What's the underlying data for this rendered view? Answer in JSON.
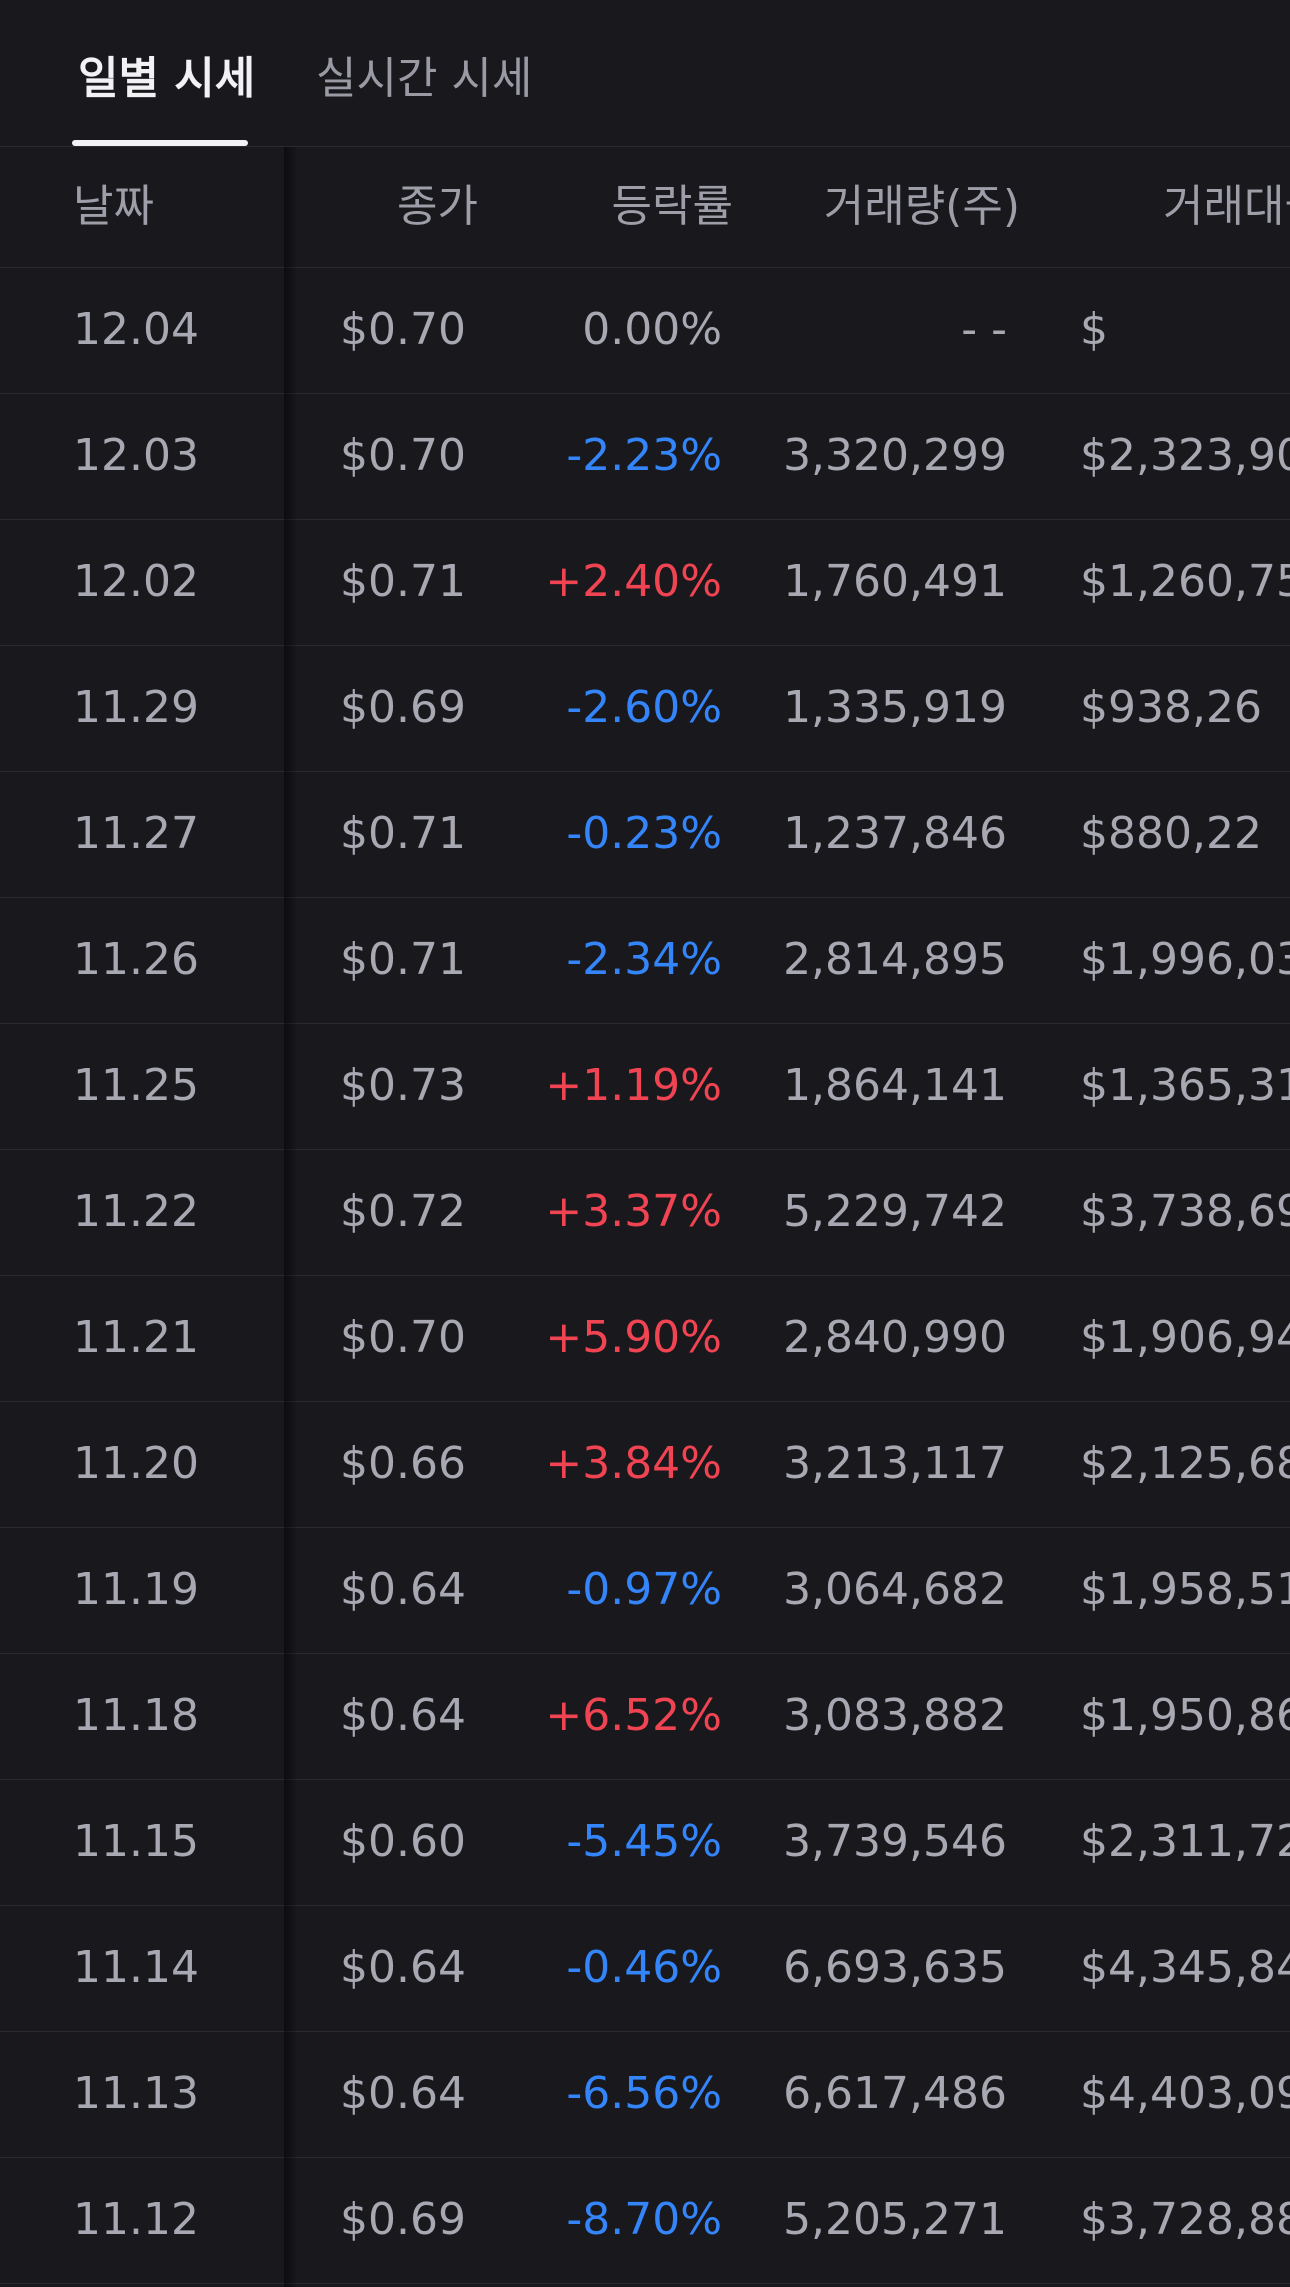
{
  "tabs": [
    {
      "label": "일별 시세",
      "active": true
    },
    {
      "label": "실시간 시세",
      "active": false
    }
  ],
  "table": {
    "headers": {
      "date": "날짜",
      "close": "종가",
      "change": "등락률",
      "volume": "거래량(주)",
      "amount": "거래대금"
    },
    "rows": [
      {
        "date": "12.04",
        "close": "$0.70",
        "change": "0.00%",
        "direction": "flat",
        "volume": "- -",
        "amount": "$"
      },
      {
        "date": "12.03",
        "close": "$0.70",
        "change": "-2.23%",
        "direction": "down",
        "volume": "3,320,299",
        "amount": "$2,323,90"
      },
      {
        "date": "12.02",
        "close": "$0.71",
        "change": "+2.40%",
        "direction": "up",
        "volume": "1,760,491",
        "amount": "$1,260,75"
      },
      {
        "date": "11.29",
        "close": "$0.69",
        "change": "-2.60%",
        "direction": "down",
        "volume": "1,335,919",
        "amount": "$938,26"
      },
      {
        "date": "11.27",
        "close": "$0.71",
        "change": "-0.23%",
        "direction": "down",
        "volume": "1,237,846",
        "amount": "$880,22"
      },
      {
        "date": "11.26",
        "close": "$0.71",
        "change": "-2.34%",
        "direction": "down",
        "volume": "2,814,895",
        "amount": "$1,996,03"
      },
      {
        "date": "11.25",
        "close": "$0.73",
        "change": "+1.19%",
        "direction": "up",
        "volume": "1,864,141",
        "amount": "$1,365,31"
      },
      {
        "date": "11.22",
        "close": "$0.72",
        "change": "+3.37%",
        "direction": "up",
        "volume": "5,229,742",
        "amount": "$3,738,69"
      },
      {
        "date": "11.21",
        "close": "$0.70",
        "change": "+5.90%",
        "direction": "up",
        "volume": "2,840,990",
        "amount": "$1,906,94"
      },
      {
        "date": "11.20",
        "close": "$0.66",
        "change": "+3.84%",
        "direction": "up",
        "volume": "3,213,117",
        "amount": "$2,125,68"
      },
      {
        "date": "11.19",
        "close": "$0.64",
        "change": "-0.97%",
        "direction": "down",
        "volume": "3,064,682",
        "amount": "$1,958,51"
      },
      {
        "date": "11.18",
        "close": "$0.64",
        "change": "+6.52%",
        "direction": "up",
        "volume": "3,083,882",
        "amount": "$1,950,86"
      },
      {
        "date": "11.15",
        "close": "$0.60",
        "change": "-5.45%",
        "direction": "down",
        "volume": "3,739,546",
        "amount": "$2,311,72"
      },
      {
        "date": "11.14",
        "close": "$0.64",
        "change": "-0.46%",
        "direction": "down",
        "volume": "6,693,635",
        "amount": "$4,345,84"
      },
      {
        "date": "11.13",
        "close": "$0.64",
        "change": "-6.56%",
        "direction": "down",
        "volume": "6,617,486",
        "amount": "$4,403,09"
      },
      {
        "date": "11.12",
        "close": "$0.69",
        "change": "-8.70%",
        "direction": "down",
        "volume": "5,205,271",
        "amount": "$3,728,88"
      }
    ]
  },
  "colors": {
    "background": "#18181d",
    "up": "#f04452",
    "down": "#3485fa",
    "text": "#a8a8b2",
    "active_tab": "#f2f2f5"
  }
}
